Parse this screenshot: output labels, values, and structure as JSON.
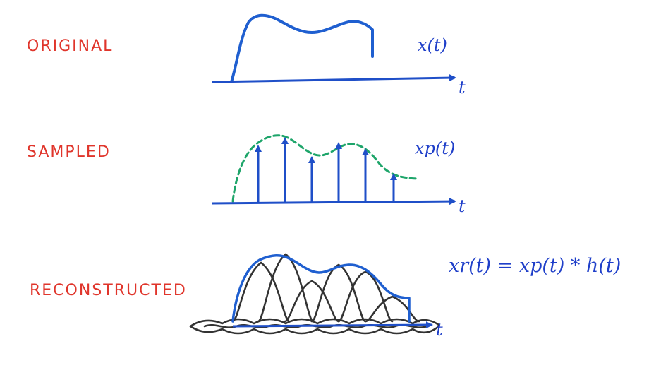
{
  "panels": {
    "original": {
      "label": "ORIGINAL",
      "signal_label": "x(t)",
      "axis_label": "t"
    },
    "sampled": {
      "label": "SAMPLED",
      "signal_label": "xp(t)",
      "axis_label": "t"
    },
    "reconstructed": {
      "label": "RECONSTRUCTED",
      "equation": "xr(t) = xp(t) * h(t)",
      "axis_label": "t"
    }
  },
  "colors": {
    "label": "#e0352b",
    "signal": "#1f5fd0",
    "axis": "#1f4fc8",
    "envelope": "#1ea56a",
    "kernel": "#333333",
    "math": "#1f3fc9"
  }
}
